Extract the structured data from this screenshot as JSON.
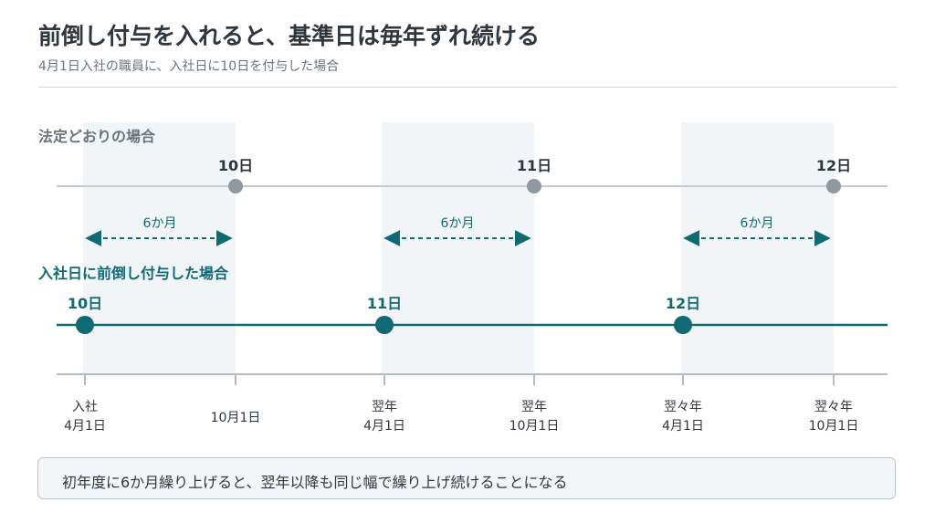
{
  "title": "前倒し付与を入れると、基準日は毎年ずれ続ける",
  "subtitle": "4月1日入社の職員に、入社日に10日を付与した場合",
  "colors": {
    "legal": "#8f989e",
    "legal_line": "#c3c9cd",
    "early": "#0f6a73",
    "band": "#f1f5f7",
    "axis": "#b4bcc2",
    "text_dark": "#2f363d",
    "text_mid": "#6b747c"
  },
  "legal_row": {
    "label": "法定どおりの場合",
    "grants": [
      "10日",
      "11日",
      "12日"
    ],
    "gap_labels": [
      "6か月",
      "6か月",
      "6か月"
    ]
  },
  "early_row": {
    "label": "入社日に前倒し付与した場合",
    "grants": [
      "10日",
      "11日",
      "12日"
    ]
  },
  "axis_ticks": [
    [
      "入社",
      "4月1日"
    ],
    [
      "",
      "10月1日"
    ],
    [
      "翌年",
      "4月1日"
    ],
    [
      "翌年",
      "10月1日"
    ],
    [
      "翌々年",
      "4月1日"
    ],
    [
      "翌々年",
      "10月1日"
    ]
  ],
  "note": "初年度に6か月繰り上げると、翌年以降も同じ幅で繰り上げ続けることになる"
}
